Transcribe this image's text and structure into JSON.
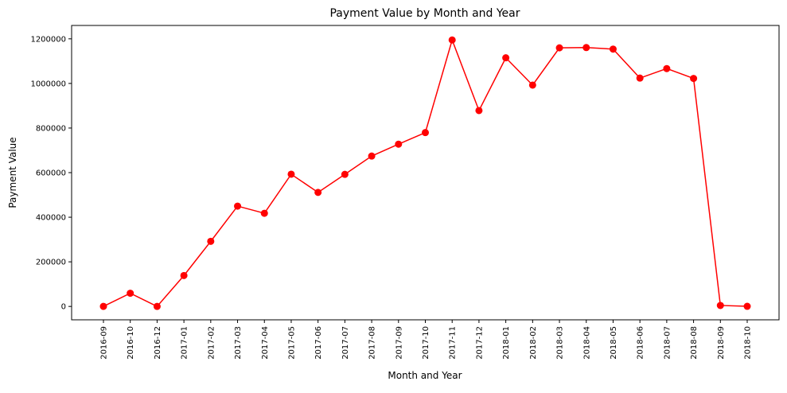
{
  "chart_data": {
    "type": "line",
    "title": "Payment Value by Month and Year",
    "xlabel": "Month and Year",
    "ylabel": "Payment Value",
    "categories": [
      "2016-09",
      "2016-10",
      "2016-12",
      "2017-01",
      "2017-02",
      "2017-03",
      "2017-04",
      "2017-05",
      "2017-06",
      "2017-07",
      "2017-08",
      "2017-09",
      "2017-10",
      "2017-11",
      "2017-12",
      "2018-01",
      "2018-02",
      "2018-03",
      "2018-04",
      "2018-05",
      "2018-06",
      "2018-07",
      "2018-08",
      "2018-09",
      "2018-10"
    ],
    "series": [
      {
        "values": [
          252,
          59090,
          20,
          138488,
          291908,
          449864,
          417788,
          592919,
          511276,
          592383,
          674396,
          727762,
          779678,
          1194883,
          878401,
          1115004,
          992463,
          1159652,
          1160785,
          1153982,
          1023880,
          1066541,
          1022425,
          4439,
          590
        ],
        "color": "#ff0000"
      }
    ],
    "yticks": [
      "0",
      "200000",
      "400000",
      "600000",
      "800000",
      "1000000",
      "1200000"
    ],
    "ylim": [
      -60000,
      1260000
    ],
    "grid": false,
    "legend": "none"
  }
}
